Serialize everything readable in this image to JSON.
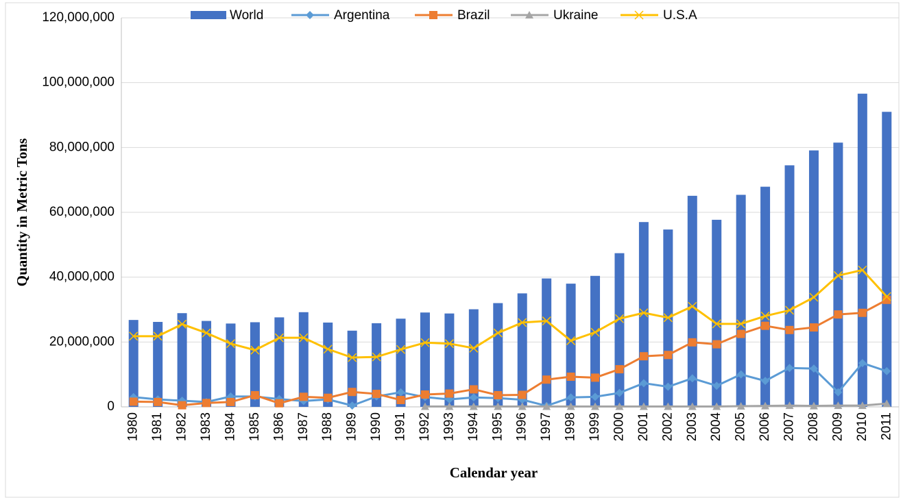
{
  "chart_data": {
    "type": "combo",
    "x_label": "Calendar year",
    "y_label": "Quantity in Metric Tons",
    "categories": [
      "1980",
      "1981",
      "1982",
      "1983",
      "1984",
      "1985",
      "1986",
      "1987",
      "1988",
      "1989",
      "1990",
      "1991",
      "1992",
      "1993",
      "1994",
      "1995",
      "1996",
      "1997",
      "1998",
      "1999",
      "2000",
      "2001",
      "2002",
      "2003",
      "2004",
      "2005",
      "2006",
      "2007",
      "2008",
      "2009",
      "2010",
      "2011"
    ],
    "ylim": [
      0,
      120000000
    ],
    "yticks": [
      0,
      {
        "value": 20000000,
        "label": "20,000,000"
      },
      {
        "value": 40000000,
        "label": "40,000,000"
      },
      {
        "value": 60000000,
        "label": "60,000,000"
      },
      {
        "value": 80000000,
        "label": "80,000,000"
      },
      {
        "value": 100000000,
        "label": "100,000,000"
      },
      {
        "value": 120000000,
        "label": "120,000,000"
      }
    ],
    "grid": true,
    "legend": "top",
    "series": [
      {
        "name": "World",
        "type": "bar",
        "color": "#4472c4",
        "values": [
          26800000,
          26200000,
          28900000,
          26500000,
          25700000,
          26100000,
          27600000,
          29200000,
          26000000,
          23500000,
          25800000,
          27200000,
          29100000,
          28800000,
          30100000,
          32000000,
          35000000,
          39600000,
          38000000,
          40400000,
          47400000,
          57000000,
          54700000,
          65100000,
          57700000,
          65400000,
          67900000,
          74500000,
          79100000,
          81500000,
          96600000,
          91000000
        ]
      },
      {
        "name": "Argentina",
        "type": "line",
        "marker": "diamond",
        "color": "#5b9bd5",
        "values": [
          3000000,
          2300000,
          1900000,
          1500000,
          3200000,
          3200000,
          2400000,
          1800000,
          2300000,
          400000,
          3200000,
          4500000,
          3000000,
          2300000,
          2900000,
          2700000,
          2200000,
          300000,
          2900000,
          3100000,
          4300000,
          7300000,
          6200000,
          8800000,
          6500000,
          10000000,
          8000000,
          12000000,
          11800000,
          4500000,
          13500000,
          11000000
        ]
      },
      {
        "name": "Brazil",
        "type": "line",
        "marker": "square",
        "color": "#ed7d31",
        "values": [
          1600000,
          1500000,
          500000,
          1200000,
          1500000,
          3600000,
          1100000,
          3100000,
          2800000,
          4600000,
          4000000,
          2100000,
          3800000,
          4100000,
          5400000,
          3600000,
          3700000,
          8400000,
          9300000,
          9000000,
          11600000,
          15600000,
          16000000,
          19900000,
          19300000,
          22500000,
          25000000,
          23700000,
          24500000,
          28500000,
          29000000,
          33000000
        ]
      },
      {
        "name": "Ukraine",
        "type": "line",
        "marker": "triangle",
        "color": "#a5a5a5",
        "values": [
          null,
          null,
          null,
          null,
          null,
          null,
          null,
          null,
          null,
          null,
          null,
          null,
          100000,
          100000,
          100000,
          100000,
          100000,
          100000,
          100000,
          100000,
          100000,
          100000,
          100000,
          100000,
          100000,
          200000,
          300000,
          400000,
          300000,
          400000,
          400000,
          1000000
        ]
      },
      {
        "name": "U.S.A",
        "type": "line",
        "marker": "x",
        "color": "#ffc000",
        "values": [
          21800000,
          21800000,
          25500000,
          22800000,
          19500000,
          17500000,
          21300000,
          21300000,
          17800000,
          15200000,
          15400000,
          17700000,
          19800000,
          19500000,
          18100000,
          22800000,
          26000000,
          26500000,
          20400000,
          23000000,
          27200000,
          29000000,
          27500000,
          31000000,
          25600000,
          25600000,
          28000000,
          29800000,
          33800000,
          40500000,
          42200000,
          34000000
        ]
      }
    ]
  }
}
